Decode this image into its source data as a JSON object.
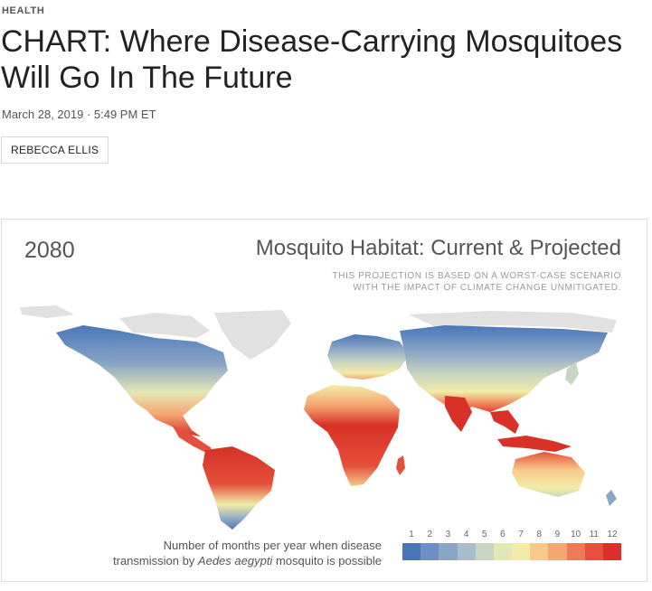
{
  "article": {
    "section": "HEALTH",
    "headline": "CHART: Where Disease-Carrying Mosquitoes Will Go In The Future",
    "dateline": "March 28, 2019 · 5:49 PM ET",
    "author": "REBECCA ELLIS"
  },
  "figure": {
    "year": "2080",
    "title": "Mosquito Habitat: Current & Projected",
    "subtitle_line1": "THIS PROJECTION IS BASED ON A WORST-CASE SCENARIO",
    "subtitle_line2": "WITH THE IMPACT OF CLIMATE CHANGE UNMITIGATED.",
    "legend_caption_line1": "Number of months per year when disease",
    "legend_caption_line2_prefix": "transmission by ",
    "legend_caption_species": "Aedes aegypti",
    "legend_caption_line2_suffix": " mosquito is possible",
    "legend": {
      "labels": [
        "1",
        "2",
        "3",
        "4",
        "5",
        "6",
        "7",
        "8",
        "9",
        "10",
        "11",
        "12"
      ],
      "colors": [
        "#4a76b8",
        "#6d8fc4",
        "#8aa6c6",
        "#a8bccb",
        "#c9d4c2",
        "#e3e7b6",
        "#f2eca8",
        "#f8c98a",
        "#f5a671",
        "#ef7b55",
        "#e4503b",
        "#d83127"
      ]
    },
    "map_colors": {
      "no_habitat": "#e1e1e1"
    }
  }
}
